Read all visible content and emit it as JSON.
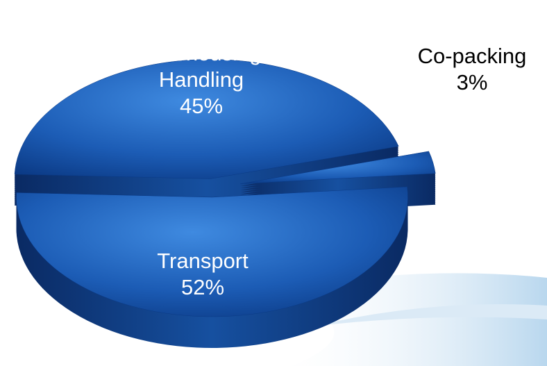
{
  "chart_data": {
    "type": "pie",
    "categories": [
      "Warehousing/ Handling",
      "Co-packing",
      "Transport"
    ],
    "values": [
      45,
      3,
      52
    ],
    "value_labels": [
      "45%",
      "3%",
      "52%"
    ],
    "colors": [
      "#1e5fb8",
      "#1e5fb8",
      "#1f66c2"
    ],
    "explode": true
  }
}
